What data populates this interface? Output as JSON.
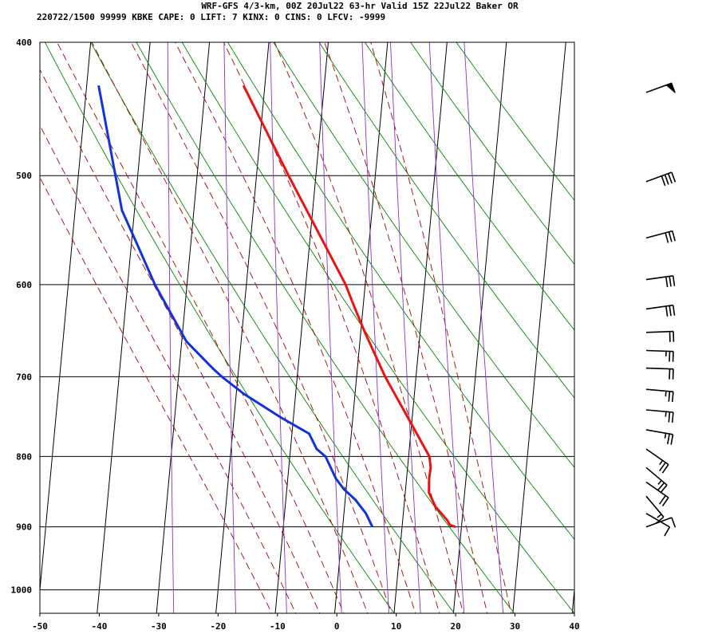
{
  "header": {
    "line1": "WRF-GFS 4/3-km, 00Z 20Jul22 63-hr Valid 15Z 22Jul22 Baker OR",
    "line2": "220722/1500 99999  KBKE    CAPE:     0 LIFT:     7 KINX:     0 CINS:     0 LFCV: -9999"
  },
  "chart_data": {
    "type": "line",
    "xlim": [
      -50,
      40
    ],
    "ylim_pressure_hPa": [
      1040,
      400
    ],
    "x_ticks": [
      "-50",
      "-40",
      "-30",
      "-20",
      "-10",
      "0",
      "10",
      "20",
      "30",
      "40"
    ],
    "y_ticks": [
      "400",
      "500",
      "600",
      "700",
      "800",
      "900",
      "1000"
    ],
    "skew_per_decade_pressure": 21.5,
    "isotherms_C": [
      -120,
      -110,
      -100,
      -90,
      -80,
      -70,
      -60,
      -50,
      -40,
      -30,
      -20,
      -10,
      0,
      10,
      20,
      30,
      40
    ],
    "dry_adiabats_theta_K": [
      280,
      290,
      300,
      310,
      320,
      330,
      340,
      350,
      360,
      370
    ],
    "moist_adiabats_C": [
      -10,
      -6,
      -2,
      2,
      6,
      10,
      14,
      18,
      22,
      26,
      30
    ],
    "mixing_ratio_lines_gkg": [
      0.4,
      1,
      2,
      4,
      7,
      10,
      16,
      24
    ],
    "temperature": [
      {
        "p": 900,
        "t": 19
      },
      {
        "p": 897,
        "t": 18
      },
      {
        "p": 890,
        "t": 17.5
      },
      {
        "p": 870,
        "t": 15.3
      },
      {
        "p": 850,
        "t": 14
      },
      {
        "p": 830,
        "t": 13.8
      },
      {
        "p": 815,
        "t": 13.9
      },
      {
        "p": 800,
        "t": 13.5
      },
      {
        "p": 750,
        "t": 9.3
      },
      {
        "p": 700,
        "t": 4.8
      },
      {
        "p": 650,
        "t": 0.7
      },
      {
        "p": 620,
        "t": -1.7
      },
      {
        "p": 600,
        "t": -3.3
      },
      {
        "p": 500,
        "t": -14.6
      },
      {
        "p": 430,
        "t": -23.6
      }
    ],
    "dewpoint": [
      {
        "p": 900,
        "t": 5
      },
      {
        "p": 880,
        "t": 3.7
      },
      {
        "p": 860,
        "t": 1.7
      },
      {
        "p": 845,
        "t": -0.4
      },
      {
        "p": 830,
        "t": -1.9
      },
      {
        "p": 800,
        "t": -4
      },
      {
        "p": 790,
        "t": -5.6
      },
      {
        "p": 770,
        "t": -7.1
      },
      {
        "p": 750,
        "t": -12
      },
      {
        "p": 720,
        "t": -18.8
      },
      {
        "p": 700,
        "t": -22.7
      },
      {
        "p": 690,
        "t": -24.4
      },
      {
        "p": 660,
        "t": -29.2
      },
      {
        "p": 600,
        "t": -35.4
      },
      {
        "p": 560,
        "t": -39.1
      },
      {
        "p": 530,
        "t": -42.1
      },
      {
        "p": 430,
        "t": -48
      }
    ],
    "wind_barbs": [
      {
        "p": 900,
        "dir": 250,
        "spd": 10
      },
      {
        "p": 880,
        "dir": 300,
        "spd": 10
      },
      {
        "p": 855,
        "dir": 320,
        "spd": 15
      },
      {
        "p": 835,
        "dir": 305,
        "spd": 20
      },
      {
        "p": 815,
        "dir": 310,
        "spd": 25
      },
      {
        "p": 790,
        "dir": 305,
        "spd": 25
      },
      {
        "p": 765,
        "dir": 280,
        "spd": 25
      },
      {
        "p": 740,
        "dir": 275,
        "spd": 25
      },
      {
        "p": 715,
        "dir": 275,
        "spd": 25
      },
      {
        "p": 690,
        "dir": 272,
        "spd": 20
      },
      {
        "p": 670,
        "dir": 272,
        "spd": 25
      },
      {
        "p": 650,
        "dir": 268,
        "spd": 20
      },
      {
        "p": 625,
        "dir": 262,
        "spd": 30
      },
      {
        "p": 595,
        "dir": 262,
        "spd": 30
      },
      {
        "p": 555,
        "dir": 255,
        "spd": 30
      },
      {
        "p": 505,
        "dir": 250,
        "spd": 40
      },
      {
        "p": 435,
        "dir": 250,
        "spd": 50
      }
    ],
    "colors": {
      "temperature": "#ee1111",
      "dewpoint": "#1133dd",
      "isotherm": "#000000",
      "dry_adiabat": "#008800",
      "moist_adiabat": "#aa0000",
      "mixing_ratio": "#8833cc",
      "frame": "#000000"
    }
  }
}
